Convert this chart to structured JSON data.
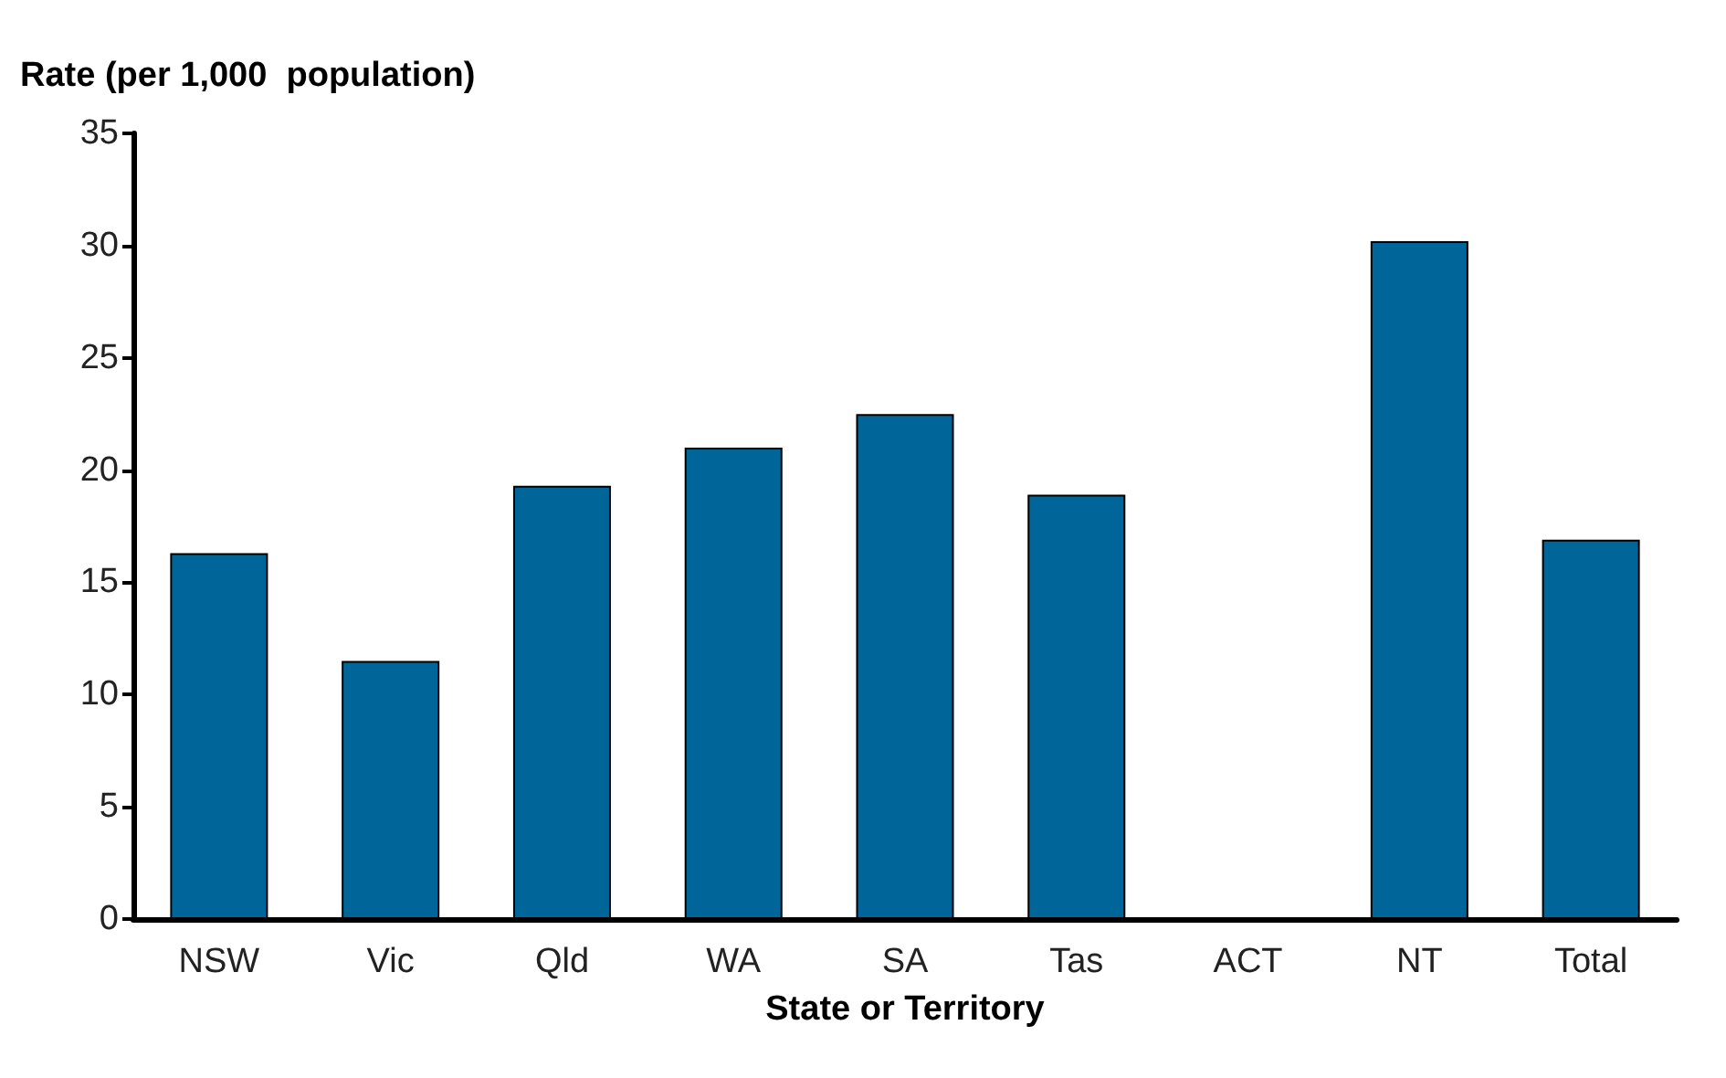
{
  "chart_data": {
    "type": "bar",
    "ylabel": "Rate (per 1,000  population)",
    "xlabel": "State or Territory",
    "categories": [
      "NSW",
      "Vic",
      "Qld",
      "WA",
      "SA",
      "Tas",
      "ACT",
      "NT",
      "Total"
    ],
    "values": [
      16.3,
      11.5,
      19.3,
      21.0,
      22.5,
      18.9,
      null,
      30.2,
      16.9
    ],
    "color": "#006699",
    "ylim": [
      0,
      35
    ],
    "yticks": [
      0,
      5,
      10,
      15,
      20,
      25,
      30,
      35
    ],
    "grid": false
  }
}
